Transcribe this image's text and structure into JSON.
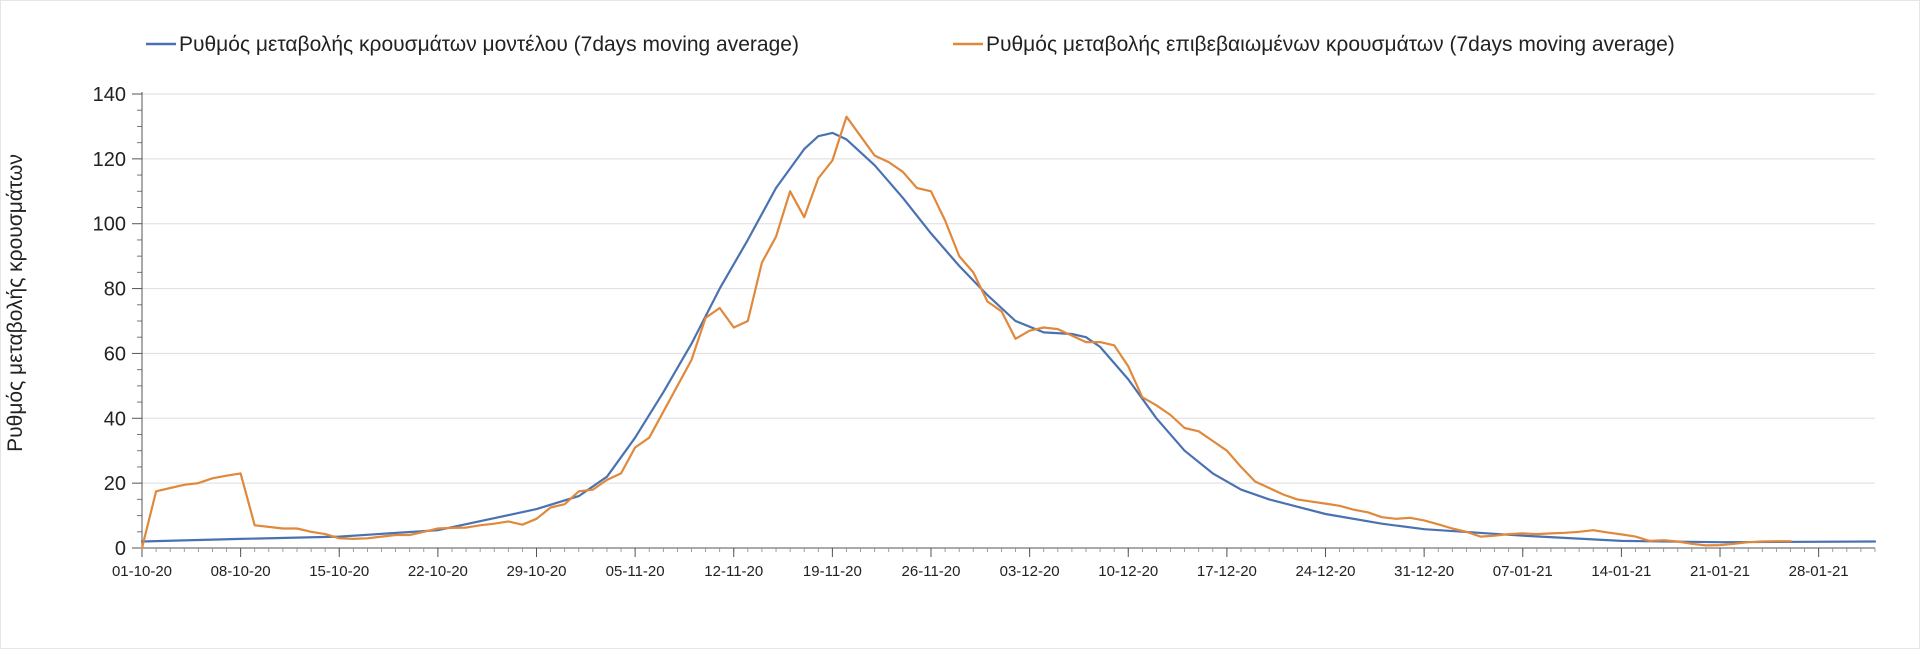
{
  "chart_data": {
    "type": "line",
    "title": "",
    "xlabel": "",
    "ylabel": "Ρυθμός μεταβολής κρουσμάτων",
    "ylim": [
      0,
      140
    ],
    "yticks": [
      "0",
      "20",
      "40",
      "60",
      "80",
      "100",
      "120",
      "140"
    ],
    "grid": true,
    "legend_position": "top",
    "x_start": "01-10-20",
    "x_end": "01-02-21",
    "x_tick_labels": [
      "01-10-20",
      "08-10-20",
      "15-10-20",
      "22-10-20",
      "29-10-20",
      "05-11-20",
      "12-11-20",
      "19-11-20",
      "26-11-20",
      "03-12-20",
      "10-12-20",
      "17-12-20",
      "24-12-20",
      "31-12-20",
      "07-01-21",
      "14-01-21",
      "21-01-21",
      "28-01-21"
    ],
    "series": [
      {
        "name": "Ρυθμός μεταβολής κρουσμάτων μοντέλου (7days moving average)",
        "color": "#4a72b2",
        "points": [
          [
            "01-10-20",
            2
          ],
          [
            "08-10-20",
            2.8
          ],
          [
            "15-10-20",
            3.5
          ],
          [
            "22-10-20",
            5.5
          ],
          [
            "29-10-20",
            12
          ],
          [
            "01-11-20",
            16
          ],
          [
            "03-11-20",
            22
          ],
          [
            "05-11-20",
            34
          ],
          [
            "07-11-20",
            48
          ],
          [
            "09-11-20",
            63
          ],
          [
            "11-11-20",
            80
          ],
          [
            "13-11-20",
            95
          ],
          [
            "15-11-20",
            111
          ],
          [
            "17-11-20",
            123
          ],
          [
            "18-11-20",
            127
          ],
          [
            "19-11-20",
            128
          ],
          [
            "20-11-20",
            126
          ],
          [
            "22-11-20",
            118
          ],
          [
            "24-11-20",
            108
          ],
          [
            "26-11-20",
            97
          ],
          [
            "28-11-20",
            87
          ],
          [
            "30-11-20",
            78
          ],
          [
            "02-12-20",
            70
          ],
          [
            "04-12-20",
            66.5
          ],
          [
            "06-12-20",
            66
          ],
          [
            "07-12-20",
            65
          ],
          [
            "08-12-20",
            62
          ],
          [
            "10-12-20",
            52
          ],
          [
            "12-12-20",
            40
          ],
          [
            "14-12-20",
            30
          ],
          [
            "16-12-20",
            23
          ],
          [
            "18-12-20",
            18
          ],
          [
            "20-12-20",
            15
          ],
          [
            "24-12-20",
            10.5
          ],
          [
            "28-12-20",
            7.5
          ],
          [
            "31-12-20",
            5.8
          ],
          [
            "07-01-21",
            3.8
          ],
          [
            "14-01-21",
            2.2
          ],
          [
            "21-01-21",
            1.8
          ],
          [
            "01-02-21",
            2
          ]
        ]
      },
      {
        "name": "Ρυθμός μεταβολής επιβεβαιωμένων κρουσμάτων (7days moving average)",
        "color": "#e0883c",
        "points": [
          [
            "01-10-20",
            0
          ],
          [
            "02-10-20",
            17.5
          ],
          [
            "03-10-20",
            18.5
          ],
          [
            "04-10-20",
            19.5
          ],
          [
            "05-10-20",
            20
          ],
          [
            "06-10-20",
            21.5
          ],
          [
            "07-10-20",
            22.3
          ],
          [
            "08-10-20",
            23
          ],
          [
            "09-10-20",
            7
          ],
          [
            "10-10-20",
            6.5
          ],
          [
            "11-10-20",
            6
          ],
          [
            "12-10-20",
            6
          ],
          [
            "13-10-20",
            5
          ],
          [
            "14-10-20",
            4.3
          ],
          [
            "15-10-20",
            3
          ],
          [
            "16-10-20",
            2.8
          ],
          [
            "17-10-20",
            3
          ],
          [
            "18-10-20",
            3.5
          ],
          [
            "19-10-20",
            4
          ],
          [
            "20-10-20",
            4
          ],
          [
            "21-10-20",
            5
          ],
          [
            "22-10-20",
            6
          ],
          [
            "23-10-20",
            6.2
          ],
          [
            "24-10-20",
            6.3
          ],
          [
            "25-10-20",
            7
          ],
          [
            "26-10-20",
            7.5
          ],
          [
            "27-10-20",
            8.2
          ],
          [
            "28-10-20",
            7.2
          ],
          [
            "29-10-20",
            9
          ],
          [
            "30-10-20",
            12.5
          ],
          [
            "31-10-20",
            13.5
          ],
          [
            "01-11-20",
            17.5
          ],
          [
            "02-11-20",
            18
          ],
          [
            "03-11-20",
            21
          ],
          [
            "04-11-20",
            23
          ],
          [
            "05-11-20",
            31
          ],
          [
            "06-11-20",
            34
          ],
          [
            "07-11-20",
            42
          ],
          [
            "08-11-20",
            50
          ],
          [
            "09-11-20",
            58
          ],
          [
            "10-11-20",
            71
          ],
          [
            "11-11-20",
            74
          ],
          [
            "12-11-20",
            68
          ],
          [
            "13-11-20",
            70
          ],
          [
            "14-11-20",
            88
          ],
          [
            "15-11-20",
            96
          ],
          [
            "16-11-20",
            110
          ],
          [
            "17-11-20",
            102
          ],
          [
            "18-11-20",
            114
          ],
          [
            "19-11-20",
            119.5
          ],
          [
            "20-11-20",
            133
          ],
          [
            "21-11-20",
            127
          ],
          [
            "22-11-20",
            121
          ],
          [
            "23-11-20",
            119
          ],
          [
            "24-11-20",
            116
          ],
          [
            "25-11-20",
            111
          ],
          [
            "26-11-20",
            110
          ],
          [
            "27-11-20",
            101
          ],
          [
            "28-11-20",
            90
          ],
          [
            "29-11-20",
            85
          ],
          [
            "30-11-20",
            76
          ],
          [
            "01-12-20",
            73
          ],
          [
            "02-12-20",
            64.5
          ],
          [
            "03-12-20",
            67
          ],
          [
            "04-12-20",
            68
          ],
          [
            "05-12-20",
            67.5
          ],
          [
            "06-12-20",
            65.5
          ],
          [
            "07-12-20",
            63.5
          ],
          [
            "08-12-20",
            63.5
          ],
          [
            "09-12-20",
            62.5
          ],
          [
            "10-12-20",
            56
          ],
          [
            "11-12-20",
            46.5
          ],
          [
            "12-12-20",
            44
          ],
          [
            "13-12-20",
            41
          ],
          [
            "14-12-20",
            37
          ],
          [
            "15-12-20",
            36
          ],
          [
            "16-12-20",
            33
          ],
          [
            "17-12-20",
            30
          ],
          [
            "18-12-20",
            25
          ],
          [
            "19-12-20",
            20.5
          ],
          [
            "20-12-20",
            18.5
          ],
          [
            "21-12-20",
            16.5
          ],
          [
            "22-12-20",
            15
          ],
          [
            "23-12-20",
            14.3
          ],
          [
            "24-12-20",
            13.7
          ],
          [
            "25-12-20",
            13
          ],
          [
            "26-12-20",
            11.8
          ],
          [
            "27-12-20",
            11
          ],
          [
            "28-12-20",
            9.5
          ],
          [
            "29-12-20",
            9
          ],
          [
            "30-12-20",
            9.3
          ],
          [
            "31-12-20",
            8.5
          ],
          [
            "01-01-21",
            7.3
          ],
          [
            "02-01-21",
            6
          ],
          [
            "03-01-21",
            5
          ],
          [
            "04-01-21",
            3.5
          ],
          [
            "05-01-21",
            3.8
          ],
          [
            "06-01-21",
            4.3
          ],
          [
            "07-01-21",
            4.5
          ],
          [
            "08-01-21",
            4.3
          ],
          [
            "09-01-21",
            4.5
          ],
          [
            "10-01-21",
            4.7
          ],
          [
            "11-01-21",
            5
          ],
          [
            "12-01-21",
            5.5
          ],
          [
            "13-01-21",
            4.8
          ],
          [
            "14-01-21",
            4.2
          ],
          [
            "15-01-21",
            3.5
          ],
          [
            "16-01-21",
            2.2
          ],
          [
            "17-01-21",
            2.4
          ],
          [
            "18-01-21",
            2
          ],
          [
            "19-01-21",
            1.3
          ],
          [
            "20-01-21",
            0.8
          ],
          [
            "21-01-21",
            0.9
          ],
          [
            "22-01-21",
            1.3
          ],
          [
            "23-01-21",
            1.8
          ],
          [
            "24-01-21",
            2
          ],
          [
            "25-01-21",
            2.1
          ],
          [
            "26-01-21",
            2.1
          ]
        ]
      }
    ]
  }
}
